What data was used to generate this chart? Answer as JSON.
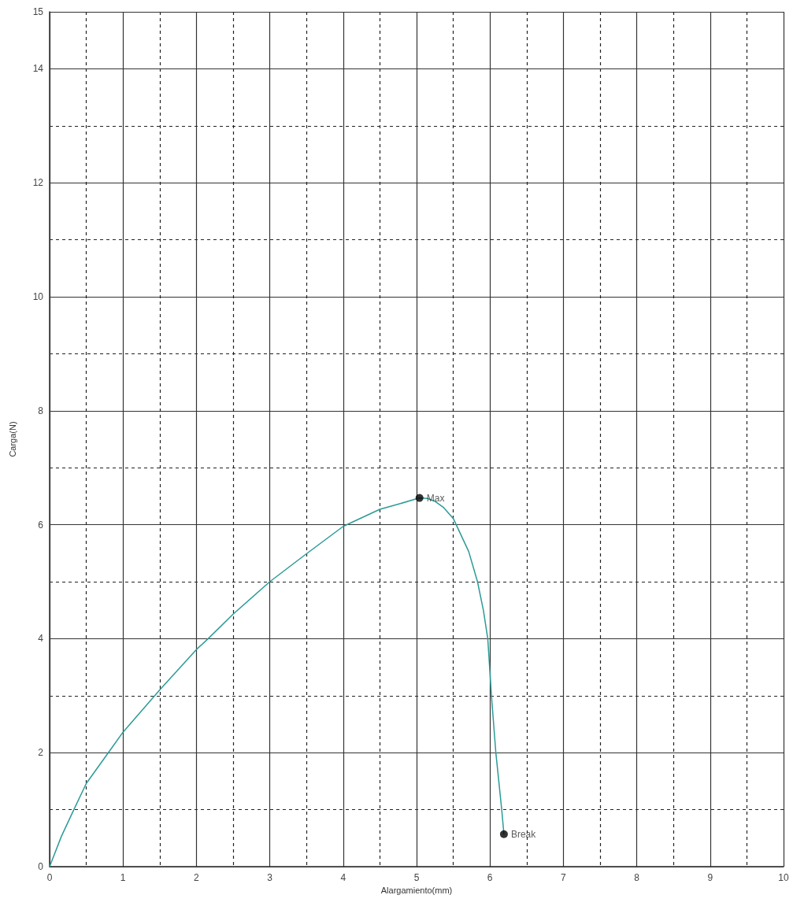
{
  "chart_data": {
    "type": "line",
    "xlabel": "Alargamiento(mm)",
    "ylabel": "Carga(N)",
    "xlim": [
      0,
      10
    ],
    "xticks": [
      0,
      {
        "value": 0.5,
        "label": null
      },
      1,
      {
        "value": 1.5,
        "label": null
      },
      2,
      {
        "value": 2.5,
        "label": null
      },
      3,
      {
        "value": 3.5,
        "label": null
      },
      4,
      {
        "value": 4.5,
        "label": null
      },
      5,
      {
        "value": 5.5,
        "label": null
      },
      6,
      {
        "value": 6.5,
        "label": null
      },
      7,
      {
        "value": 7.5,
        "label": null
      },
      8,
      {
        "value": 8.5,
        "label": null
      },
      9,
      {
        "value": 9.5,
        "label": null
      },
      10
    ],
    "ylim": [
      0,
      15
    ],
    "yticks": [
      0,
      {
        "value": 1,
        "label": null
      },
      2,
      {
        "value": 3,
        "label": null
      },
      4,
      {
        "value": 5,
        "label": null
      },
      6,
      {
        "value": 7,
        "label": null
      },
      8,
      {
        "value": 9,
        "label": null
      },
      10,
      {
        "value": 11,
        "label": null
      },
      12,
      {
        "value": 13,
        "label": null
      },
      14,
      15
    ],
    "grid": true,
    "line_style": "solid",
    "series": [
      {
        "color": "#2b9b96",
        "marker": "none",
        "x": [
          0,
          0.16,
          0.33,
          0.5,
          0.8,
          1.0,
          1.5,
          2.0,
          2.16,
          2.5,
          3.0,
          3.5,
          4.0,
          4.5,
          4.75,
          5.04,
          5.15,
          5.25,
          5.37,
          5.5,
          5.54,
          5.71,
          5.83,
          5.91,
          5.97,
          6.02,
          6.08,
          6.16,
          6.19
        ],
        "values": [
          0,
          0.53,
          1.0,
          1.46,
          2.0,
          2.36,
          3.1,
          3.81,
          4.0,
          4.43,
          5.0,
          5.49,
          5.97,
          6.27,
          6.36,
          6.47,
          6.46,
          6.41,
          6.3,
          6.11,
          6.0,
          5.53,
          5.0,
          4.5,
          4.0,
          3.0,
          2.0,
          1.0,
          0.57
        ]
      },
      {
        "type": "scatter",
        "color": "#000000",
        "marker": "circle",
        "x": [
          5.04,
          6.19
        ],
        "values": [
          6.47,
          0.57
        ]
      }
    ],
    "annotations": [
      {
        "text": "Max",
        "x": 5.04,
        "y": 6.47
      },
      {
        "text": "Break",
        "x": 6.19,
        "y": 0.57
      }
    ]
  }
}
